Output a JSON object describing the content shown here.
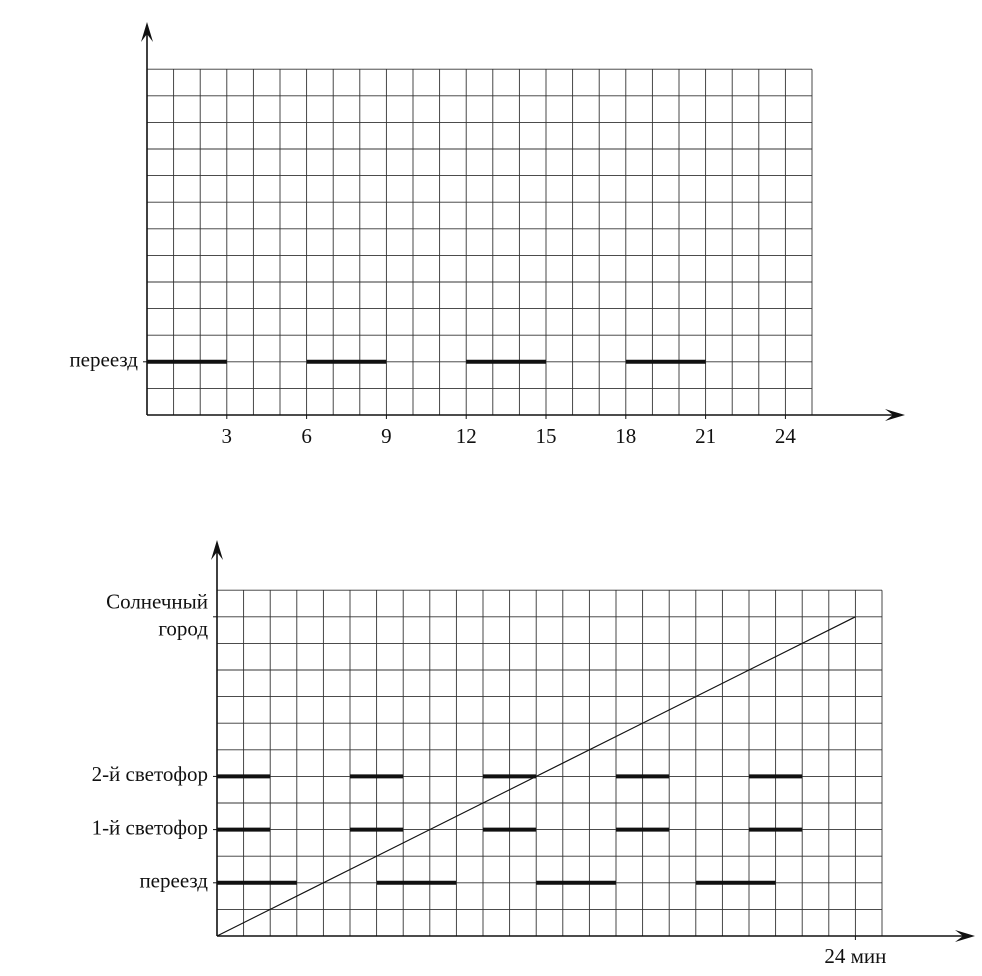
{
  "chart_data": [
    {
      "type": "timeline",
      "xlim": [
        0,
        25
      ],
      "ylim": [
        0,
        13
      ],
      "xticks": [
        3,
        6,
        9,
        12,
        15,
        18,
        21,
        24
      ],
      "grid": true,
      "rows": [
        {
          "label": "переезд",
          "level": 2,
          "intervals": [
            [
              0,
              3
            ],
            [
              6,
              9
            ],
            [
              12,
              15
            ],
            [
              18,
              21
            ]
          ]
        }
      ]
    },
    {
      "type": "timeline",
      "xlim": [
        0,
        25
      ],
      "ylim": [
        0,
        13
      ],
      "xticks": [
        {
          "value": 24,
          "label": "24 мин"
        }
      ],
      "grid": true,
      "rows": [
        {
          "label": "Солнечный город",
          "level": 12,
          "intervals": []
        },
        {
          "label": "2-й светофор",
          "level": 6,
          "intervals": [
            [
              0,
              2
            ],
            [
              5,
              7
            ],
            [
              10,
              12
            ],
            [
              15,
              17
            ],
            [
              20,
              22
            ]
          ]
        },
        {
          "label": "1-й светофор",
          "level": 4,
          "intervals": [
            [
              0,
              2
            ],
            [
              5,
              7
            ],
            [
              10,
              12
            ],
            [
              15,
              17
            ],
            [
              20,
              22
            ]
          ]
        },
        {
          "label": "переезд",
          "level": 2,
          "intervals": [
            [
              0,
              3
            ],
            [
              6,
              9
            ],
            [
              12,
              15
            ],
            [
              18,
              21
            ]
          ]
        }
      ],
      "line": {
        "x": [
          0,
          24
        ],
        "values": [
          0,
          12
        ]
      }
    }
  ]
}
